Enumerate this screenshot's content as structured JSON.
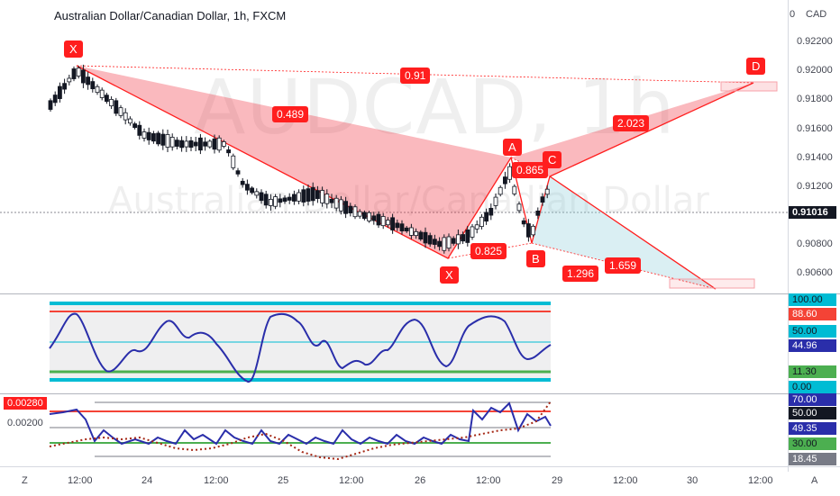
{
  "header": {
    "title": "Australian Dollar/Canadian Dollar, 1h, FXCM",
    "currency": "CAD"
  },
  "watermark": {
    "symbol": "AUDCAD, 1h",
    "name": "Australian Dollar/Canadian Dollar"
  },
  "price_axis": {
    "zero_label": "0",
    "ticks": [
      "0.92200",
      "0.92000",
      "0.91800",
      "0.91600",
      "0.91400",
      "0.91200",
      "0.90800",
      "0.90600"
    ],
    "current_price": "0.91016"
  },
  "pattern_labels": {
    "X1": "X",
    "X2": "X",
    "A": "A",
    "B": "B",
    "C": "C",
    "D": "D"
  },
  "ratio_labels": {
    "r091": "0.91",
    "r0489": "0.489",
    "r2023": "2.023",
    "r0865": "0.865",
    "r0825": "0.825",
    "r1296": "1.296",
    "r1659": "1.659"
  },
  "indicator1": {
    "labels": [
      "100.00",
      "88.60",
      "50.00",
      "44.96",
      "11.30",
      "0.00"
    ]
  },
  "indicator2": {
    "left_labels": [
      "0.00280",
      "0.00200"
    ],
    "labels": [
      "70.00",
      "50.00",
      "49.35",
      "30.00",
      "18.45"
    ]
  },
  "time_axis": {
    "labels": [
      "12:00",
      "24",
      "12:00",
      "25",
      "12:00",
      "26",
      "12:00",
      "29",
      "12:00",
      "30",
      "12:00"
    ]
  },
  "corner_left": "Z",
  "corner_right": "A",
  "colors": {
    "bear": "#131722",
    "bull": "#ffffff",
    "pattern_red": "#ff1e1e",
    "pattern_fill": "rgba(242,54,69,0.35)",
    "cyan": "#00bcd4",
    "purple": "#2a2eaa",
    "green": "#4caf50"
  },
  "chart_data": {
    "type": "candlestick_harmonic",
    "pattern": {
      "points": [
        {
          "name": "X",
          "price": 0.9202
        },
        {
          "name": "X",
          "price": 0.9067
        },
        {
          "name": "A",
          "price": 0.9136
        },
        {
          "name": "B",
          "price": 0.908
        },
        {
          "name": "C",
          "price": 0.9129
        },
        {
          "name": "D",
          "price": 0.919
        }
      ],
      "ratios": [
        "0.91",
        "0.489",
        "2.023",
        "0.865",
        "0.825",
        "1.296",
        "1.659"
      ]
    },
    "current_price": 0.91016,
    "indicator1_value": 44.96,
    "indicator2_value": 49.35
  }
}
